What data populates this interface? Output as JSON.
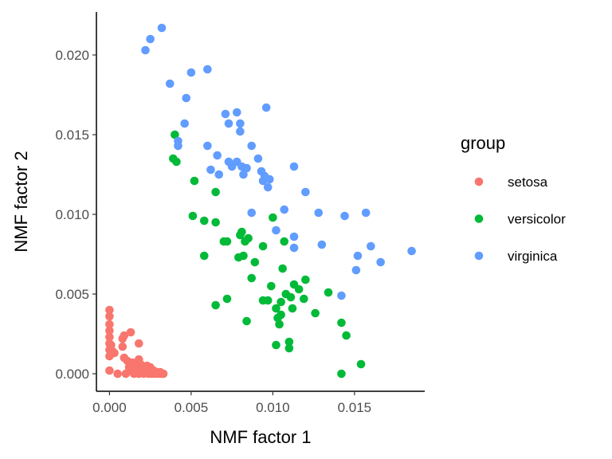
{
  "chart_data": {
    "type": "scatter",
    "title": "",
    "xlabel": "NMF factor 1",
    "ylabel": "NMF factor 2",
    "xlim": [
      -0.0008,
      0.0193
    ],
    "ylim": [
      -0.0011,
      0.0227
    ],
    "x_ticks": [
      0.0,
      0.005,
      0.01,
      0.015
    ],
    "x_tick_labels": [
      "0.000",
      "0.005",
      "0.010",
      "0.015"
    ],
    "y_ticks": [
      0.0,
      0.005,
      0.01,
      0.015,
      0.02
    ],
    "y_tick_labels": [
      "0.000",
      "0.005",
      "0.010",
      "0.015",
      "0.020"
    ],
    "grid": false,
    "legend": {
      "title": "group",
      "position": "right"
    },
    "series": [
      {
        "name": "setosa",
        "color": "#F8766D",
        "points": [
          [
            0.0,
            0.004
          ],
          [
            0.0,
            0.0036
          ],
          [
            0.0,
            0.0031
          ],
          [
            0.0,
            0.0027
          ],
          [
            0.0,
            0.0023
          ],
          [
            0.0,
            0.0019
          ],
          [
            0.0,
            0.0015
          ],
          [
            0.0,
            0.0011
          ],
          [
            0.0,
            0.0002
          ],
          [
            0.0001,
            0.0018
          ],
          [
            0.0002,
            0.0014
          ],
          [
            0.0003,
            0.0013
          ],
          [
            0.0005,
            0.0
          ],
          [
            0.0008,
            0.0022
          ],
          [
            0.0008,
            0.0017
          ],
          [
            0.0009,
            0.0024
          ],
          [
            0.0009,
            0.001
          ],
          [
            0.001,
            0.0
          ],
          [
            0.0011,
            0.0008
          ],
          [
            0.0012,
            0.0004
          ],
          [
            0.0013,
            0.0026
          ],
          [
            0.0013,
            0.0002
          ],
          [
            0.0014,
            0.0007
          ],
          [
            0.0015,
            0.0
          ],
          [
            0.0016,
            0.0005
          ],
          [
            0.0016,
            0.0001
          ],
          [
            0.0017,
            0.0003
          ],
          [
            0.0018,
            0.0019
          ],
          [
            0.0018,
            0.0009
          ],
          [
            0.0018,
            0.0
          ],
          [
            0.0019,
            0.0006
          ],
          [
            0.0019,
            0.0002
          ],
          [
            0.002,
            0.0004
          ],
          [
            0.002,
            0.0001
          ],
          [
            0.0021,
            0.0
          ],
          [
            0.0022,
            0.0003
          ],
          [
            0.0022,
            0.0001
          ],
          [
            0.0023,
            0.0005
          ],
          [
            0.0024,
            0.0
          ],
          [
            0.0024,
            0.0002
          ],
          [
            0.0025,
            0.0004
          ],
          [
            0.0025,
            0.0001
          ],
          [
            0.0026,
            0.0
          ],
          [
            0.0027,
            0.0002
          ],
          [
            0.0028,
            0.0
          ],
          [
            0.0029,
            0.0001
          ],
          [
            0.003,
            0.0
          ],
          [
            0.0031,
            0.0001
          ],
          [
            0.0032,
            0.0
          ],
          [
            0.0033,
            0.0
          ]
        ]
      },
      {
        "name": "versicolor",
        "color": "#00BA38",
        "points": [
          [
            0.004,
            0.015
          ],
          [
            0.0039,
            0.0135
          ],
          [
            0.0041,
            0.0133
          ],
          [
            0.0052,
            0.0121
          ],
          [
            0.0051,
            0.0099
          ],
          [
            0.0058,
            0.0096
          ],
          [
            0.0065,
            0.0114
          ],
          [
            0.0065,
            0.0095
          ],
          [
            0.0058,
            0.0074
          ],
          [
            0.007,
            0.0083
          ],
          [
            0.0072,
            0.0083
          ],
          [
            0.0065,
            0.0043
          ],
          [
            0.0072,
            0.0047
          ],
          [
            0.0079,
            0.0073
          ],
          [
            0.008,
            0.0087
          ],
          [
            0.0081,
            0.0089
          ],
          [
            0.0082,
            0.0074
          ],
          [
            0.0083,
            0.0083
          ],
          [
            0.0085,
            0.0085
          ],
          [
            0.0084,
            0.0033
          ],
          [
            0.0087,
            0.006
          ],
          [
            0.0089,
            0.007
          ],
          [
            0.0094,
            0.008
          ],
          [
            0.0094,
            0.0046
          ],
          [
            0.0097,
            0.0046
          ],
          [
            0.0099,
            0.0055
          ],
          [
            0.01,
            0.0098
          ],
          [
            0.0102,
            0.0018
          ],
          [
            0.0102,
            0.0041
          ],
          [
            0.0103,
            0.0035
          ],
          [
            0.0104,
            0.0031
          ],
          [
            0.0105,
            0.0045
          ],
          [
            0.0106,
            0.0066
          ],
          [
            0.0107,
            0.0083
          ],
          [
            0.0108,
            0.005
          ],
          [
            0.011,
            0.002
          ],
          [
            0.011,
            0.0016
          ],
          [
            0.0111,
            0.0048
          ],
          [
            0.0112,
            0.0041
          ],
          [
            0.0113,
            0.0056
          ],
          [
            0.0116,
            0.0053
          ],
          [
            0.0119,
            0.0047
          ],
          [
            0.012,
            0.0059
          ],
          [
            0.0126,
            0.0038
          ],
          [
            0.0134,
            0.0051
          ],
          [
            0.0142,
            0.0032
          ],
          [
            0.0142,
            0.0
          ],
          [
            0.0145,
            0.0024
          ],
          [
            0.0154,
            0.0006
          ],
          [
            0.0105,
            0.0037
          ]
        ]
      },
      {
        "name": "virginica",
        "color": "#619CFF",
        "points": [
          [
            0.0032,
            0.0217
          ],
          [
            0.0025,
            0.021
          ],
          [
            0.0022,
            0.0203
          ],
          [
            0.0037,
            0.0182
          ],
          [
            0.005,
            0.0189
          ],
          [
            0.006,
            0.0191
          ],
          [
            0.0047,
            0.0173
          ],
          [
            0.0046,
            0.0157
          ],
          [
            0.0042,
            0.0143
          ],
          [
            0.0042,
            0.0146
          ],
          [
            0.006,
            0.0143
          ],
          [
            0.0066,
            0.0137
          ],
          [
            0.0062,
            0.0128
          ],
          [
            0.0067,
            0.0125
          ],
          [
            0.0071,
            0.0163
          ],
          [
            0.0073,
            0.0157
          ],
          [
            0.0078,
            0.0164
          ],
          [
            0.008,
            0.0157
          ],
          [
            0.008,
            0.0152
          ],
          [
            0.0073,
            0.0133
          ],
          [
            0.0075,
            0.013
          ],
          [
            0.0078,
            0.0133
          ],
          [
            0.0081,
            0.013
          ],
          [
            0.0082,
            0.0125
          ],
          [
            0.0084,
            0.0129
          ],
          [
            0.0087,
            0.0143
          ],
          [
            0.0091,
            0.0135
          ],
          [
            0.0093,
            0.0127
          ],
          [
            0.0094,
            0.0121
          ],
          [
            0.0095,
            0.0124
          ],
          [
            0.0096,
            0.0167
          ],
          [
            0.0097,
            0.0117
          ],
          [
            0.0098,
            0.0122
          ],
          [
            0.0087,
            0.0101
          ],
          [
            0.0102,
            0.009
          ],
          [
            0.0107,
            0.0103
          ],
          [
            0.0113,
            0.013
          ],
          [
            0.0113,
            0.0086
          ],
          [
            0.0113,
            0.0079
          ],
          [
            0.012,
            0.0114
          ],
          [
            0.0128,
            0.0101
          ],
          [
            0.013,
            0.0081
          ],
          [
            0.0142,
            0.0049
          ],
          [
            0.0144,
            0.0099
          ],
          [
            0.0151,
            0.0065
          ],
          [
            0.0152,
            0.0074
          ],
          [
            0.0157,
            0.0101
          ],
          [
            0.016,
            0.008
          ],
          [
            0.0166,
            0.007
          ],
          [
            0.0185,
            0.0077
          ]
        ]
      }
    ]
  }
}
